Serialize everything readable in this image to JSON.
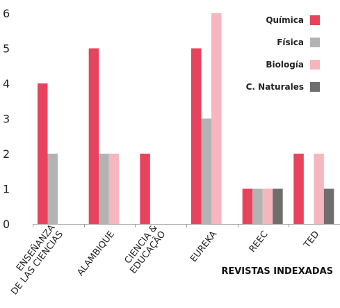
{
  "chart_data": {
    "type": "bar",
    "categories": [
      [
        "ENSEÑANZA",
        "DE LAS CIENCIAS"
      ],
      [
        "ALAMBIQUE"
      ],
      [
        "CIENCIA &",
        "EDUCAÇÃO"
      ],
      [
        "EUREKA"
      ],
      [
        "REEC"
      ],
      [
        "TED"
      ]
    ],
    "series": [
      {
        "name": "Química",
        "color": "#e8435e",
        "values": [
          4,
          5,
          2,
          5,
          1,
          2
        ]
      },
      {
        "name": "Física",
        "color": "#b3b3b3",
        "values": [
          2,
          2,
          0,
          3,
          1,
          0
        ]
      },
      {
        "name": "Biología",
        "color": "#f6b6be",
        "values": [
          0,
          2,
          0,
          6,
          1,
          2
        ]
      },
      {
        "name": "C. Naturales",
        "color": "#6e6e6e",
        "values": [
          0,
          0,
          0,
          0,
          1,
          1
        ]
      }
    ],
    "xlabel": "REVISTAS INDEXADAS",
    "ylabel": "",
    "ylim": [
      0,
      6
    ],
    "yticks": [
      0,
      1,
      2,
      3,
      4,
      5,
      6
    ],
    "grid": false,
    "legend_position": "top-right"
  }
}
